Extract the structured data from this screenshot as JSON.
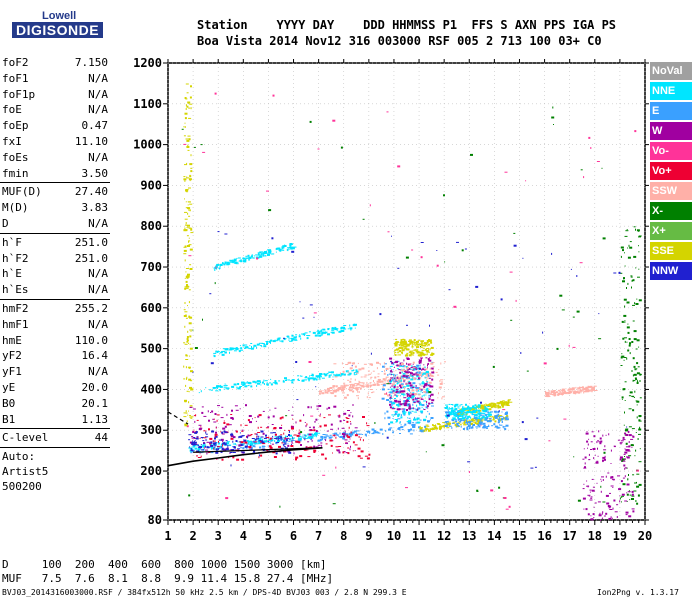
{
  "logo": {
    "line1": "Lowell",
    "line2": "DIGISONDE"
  },
  "header": {
    "line1": "Station    YYYY DAY    DDD HHMMSS P1  FFS S AXN PPS IGA PS",
    "line2": "Boa Vista 2014 Nov12 316 003000 RSF 005 2 713 100 03+ C0"
  },
  "params": [
    {
      "k": "foF2",
      "v": "7.150"
    },
    {
      "k": "foF1",
      "v": "N/A"
    },
    {
      "k": "foF1p",
      "v": "N/A"
    },
    {
      "k": "foE",
      "v": "N/A"
    },
    {
      "k": "foEp",
      "v": "0.47"
    },
    {
      "k": "fxI",
      "v": "11.10"
    },
    {
      "k": "foEs",
      "v": "N/A"
    },
    {
      "k": "fmin",
      "v": "3.50"
    },
    {
      "k": "MUF(D)",
      "v": "27.40"
    },
    {
      "k": "M(D)",
      "v": "3.83"
    },
    {
      "k": "D",
      "v": "N/A"
    },
    {
      "k": "h`F",
      "v": "251.0"
    },
    {
      "k": "h`F2",
      "v": "251.0"
    },
    {
      "k": "h`E",
      "v": "N/A"
    },
    {
      "k": "h`Es",
      "v": "N/A"
    },
    {
      "k": "hmF2",
      "v": "255.2"
    },
    {
      "k": "hmF1",
      "v": "N/A"
    },
    {
      "k": "hmE",
      "v": "110.0"
    },
    {
      "k": "yF2",
      "v": "16.4"
    },
    {
      "k": "yF1",
      "v": "N/A"
    },
    {
      "k": "yE",
      "v": "20.0"
    },
    {
      "k": "B0",
      "v": "20.1"
    },
    {
      "k": "B1",
      "v": "1.13"
    },
    {
      "k": "C-level",
      "v": "44"
    }
  ],
  "auto": {
    "l1": "Auto:",
    "l2": "Artist5",
    "l3": "500200"
  },
  "bottom": {
    "d_row": "D     100  200  400  600  800 1000 1500 3000 [km]",
    "muf_row": "MUF   7.5  7.6  8.1  8.8  9.9 11.4 15.8 27.4 [MHz]"
  },
  "footer": {
    "left": "BVJ03_2014316003000.RSF / 384fx512h 50 kHz 2.5 km / DPS-4D BVJ03 003 / 2.8 N 299.3 E",
    "right": "Ion2Png v. 1.3.17"
  },
  "legend": [
    {
      "label": "NoVal",
      "color": "#a0a0a0"
    },
    {
      "label": "NNE",
      "color": "#00e5ff"
    },
    {
      "label": "E",
      "color": "#3aa0ff"
    },
    {
      "label": "W",
      "color": "#a000a0"
    },
    {
      "label": "Vo-",
      "color": "#ff3399"
    },
    {
      "label": "Vo+",
      "color": "#ee0033"
    },
    {
      "label": "SSW",
      "color": "#ffb0a8"
    },
    {
      "label": "X-",
      "color": "#008000"
    },
    {
      "label": "X+",
      "color": "#66bb44"
    },
    {
      "label": "SSE",
      "color": "#d4d400"
    },
    {
      "label": "NNW",
      "color": "#2020d0"
    }
  ],
  "chart_data": {
    "type": "scatter",
    "xlim": [
      1,
      20
    ],
    "ylim": [
      80,
      1200
    ],
    "xticks": [
      1,
      2,
      3,
      4,
      5,
      6,
      7,
      8,
      9,
      10,
      11,
      12,
      13,
      14,
      15,
      16,
      17,
      18,
      19,
      20
    ],
    "yticks": [
      80,
      200,
      300,
      400,
      500,
      600,
      700,
      800,
      900,
      1000,
      1100,
      1200
    ],
    "grid": true,
    "traces": [
      {
        "mode": "x",
        "color": "#3aa0ff",
        "x": [
          1.8,
          11.0
        ],
        "y": [
          248,
          310
        ]
      },
      {
        "mode": "x",
        "color": "#00e5ff",
        "x": [
          1.8,
          7.0
        ],
        "y": [
          258,
          290
        ]
      },
      {
        "mode": "x",
        "color": "#00e5ff",
        "x": [
          2.2,
          8.5
        ],
        "y": [
          400,
          445
        ]
      },
      {
        "mode": "x",
        "color": "#00e5ff",
        "x": [
          2.8,
          8.5
        ],
        "y": [
          490,
          558
        ]
      },
      {
        "mode": "x",
        "color": "#00e5ff",
        "x": [
          2.8,
          6.0
        ],
        "y": [
          700,
          755
        ]
      },
      {
        "mode": "x",
        "color": "#ffb0a8",
        "x": [
          7.0,
          11.5
        ],
        "y": [
          395,
          440
        ]
      },
      {
        "mode": "x",
        "color": "#d4d400",
        "x": [
          11.0,
          14.5
        ],
        "y": [
          305,
          335
        ]
      },
      {
        "mode": "x",
        "color": "#d4d400",
        "x": [
          12.5,
          14.6
        ],
        "y": [
          345,
          370
        ]
      },
      {
        "mode": "x",
        "color": "#ffb0a8",
        "x": [
          16.0,
          18.0
        ],
        "y": [
          390,
          405
        ]
      },
      {
        "mode": "box",
        "color": "#a000a0",
        "x": [
          1.8,
          8.5
        ],
        "y": [
          245,
          365
        ]
      },
      {
        "mode": "box",
        "color": "#2020d0",
        "x": [
          1.8,
          6.0
        ],
        "y": [
          245,
          300
        ]
      },
      {
        "mode": "box",
        "color": "#3aa0ff",
        "x": [
          9.5,
          11.5
        ],
        "y": [
          290,
          470
        ]
      },
      {
        "mode": "box",
        "color": "#00e5ff",
        "x": [
          9.8,
          11.3
        ],
        "y": [
          320,
          460
        ]
      },
      {
        "mode": "box",
        "color": "#a000a0",
        "x": [
          9.8,
          11.5
        ],
        "y": [
          350,
          480
        ]
      },
      {
        "mode": "box",
        "color": "#3aa0ff",
        "x": [
          12.0,
          14.5
        ],
        "y": [
          305,
          350
        ]
      },
      {
        "mode": "box",
        "color": "#00e5ff",
        "x": [
          12.0,
          13.8
        ],
        "y": [
          330,
          365
        ]
      },
      {
        "mode": "box",
        "color": "#ffb0a8",
        "x": [
          7.5,
          12.0
        ],
        "y": [
          380,
          470
        ]
      },
      {
        "mode": "box",
        "color": "#d4d400",
        "x": [
          10.0,
          11.5
        ],
        "y": [
          485,
          525
        ]
      },
      {
        "mode": "box",
        "color": "#ee0033",
        "x": [
          2.0,
          9.0
        ],
        "y": [
          230,
          340
        ]
      },
      {
        "mode": "box",
        "color": "#008000",
        "x": [
          1.5,
          19.8
        ],
        "y": [
          100,
          1150
        ]
      },
      {
        "mode": "box",
        "color": "#ff3399",
        "x": [
          1.5,
          19.8
        ],
        "y": [
          100,
          1150
        ]
      },
      {
        "mode": "box",
        "color": "#008000",
        "x": [
          19.0,
          19.8
        ],
        "y": [
          120,
          800
        ]
      },
      {
        "mode": "box",
        "color": "#a000a0",
        "x": [
          17.5,
          19.5
        ],
        "y": [
          80,
          300
        ]
      },
      {
        "mode": "box",
        "color": "#2020d0",
        "x": [
          1.5,
          19.5
        ],
        "y": [
          200,
          800
        ]
      },
      {
        "mode": "box",
        "color": "#d4d400",
        "x": [
          1.6,
          1.9
        ],
        "y": [
          300,
          1150
        ]
      }
    ],
    "profile": {
      "x": [
        1.0,
        2.0,
        3.0,
        4.0,
        5.0,
        6.0,
        7.15
      ],
      "y": [
        213,
        224,
        232,
        240,
        247,
        252,
        257
      ]
    },
    "profile_dashed": {
      "x": [
        1.0,
        1.8
      ],
      "y": [
        345,
        315
      ]
    }
  }
}
